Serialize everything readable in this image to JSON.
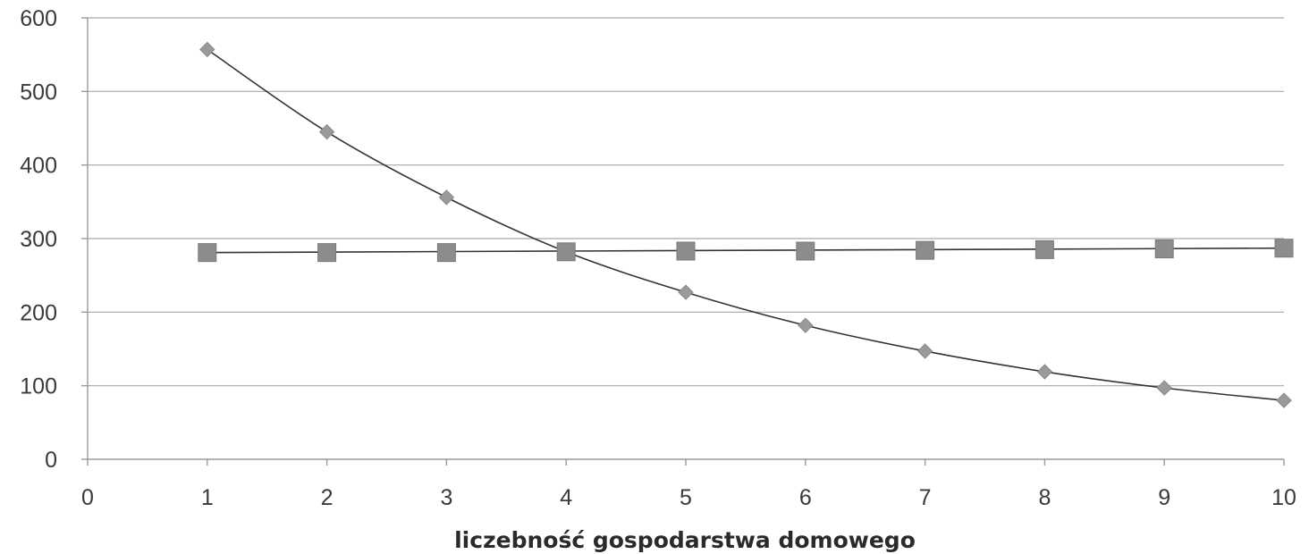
{
  "chart_data": {
    "type": "scatter",
    "title": "",
    "xlabel": "liczebność gospodarstwa domowego",
    "ylabel": "",
    "xlim": [
      0,
      10
    ],
    "ylim": [
      0,
      600
    ],
    "x_ticks": [
      "0",
      "1",
      "2",
      "3",
      "4",
      "5",
      "6",
      "7",
      "8",
      "9",
      "10"
    ],
    "y_ticks": [
      "0",
      "100",
      "200",
      "300",
      "400",
      "500",
      "600"
    ],
    "grid": "horizontal",
    "legend": "none",
    "colors": {
      "diamond": "#9a9a9a",
      "square": "#8c8c8c",
      "line": "#333333"
    },
    "series": [
      {
        "marker": "diamond",
        "trendline": "smooth",
        "x": [
          1,
          2,
          3,
          4,
          5,
          6,
          7,
          8,
          9,
          10
        ],
        "y": [
          557,
          445,
          356,
          282,
          227,
          182,
          147,
          119,
          97,
          80
        ]
      },
      {
        "marker": "square",
        "trendline": "linear",
        "x": [
          1,
          2,
          3,
          4,
          5,
          6,
          7,
          8,
          9,
          10
        ],
        "y": [
          281,
          281,
          281,
          282,
          283,
          283,
          284,
          285,
          286,
          287
        ]
      }
    ]
  }
}
